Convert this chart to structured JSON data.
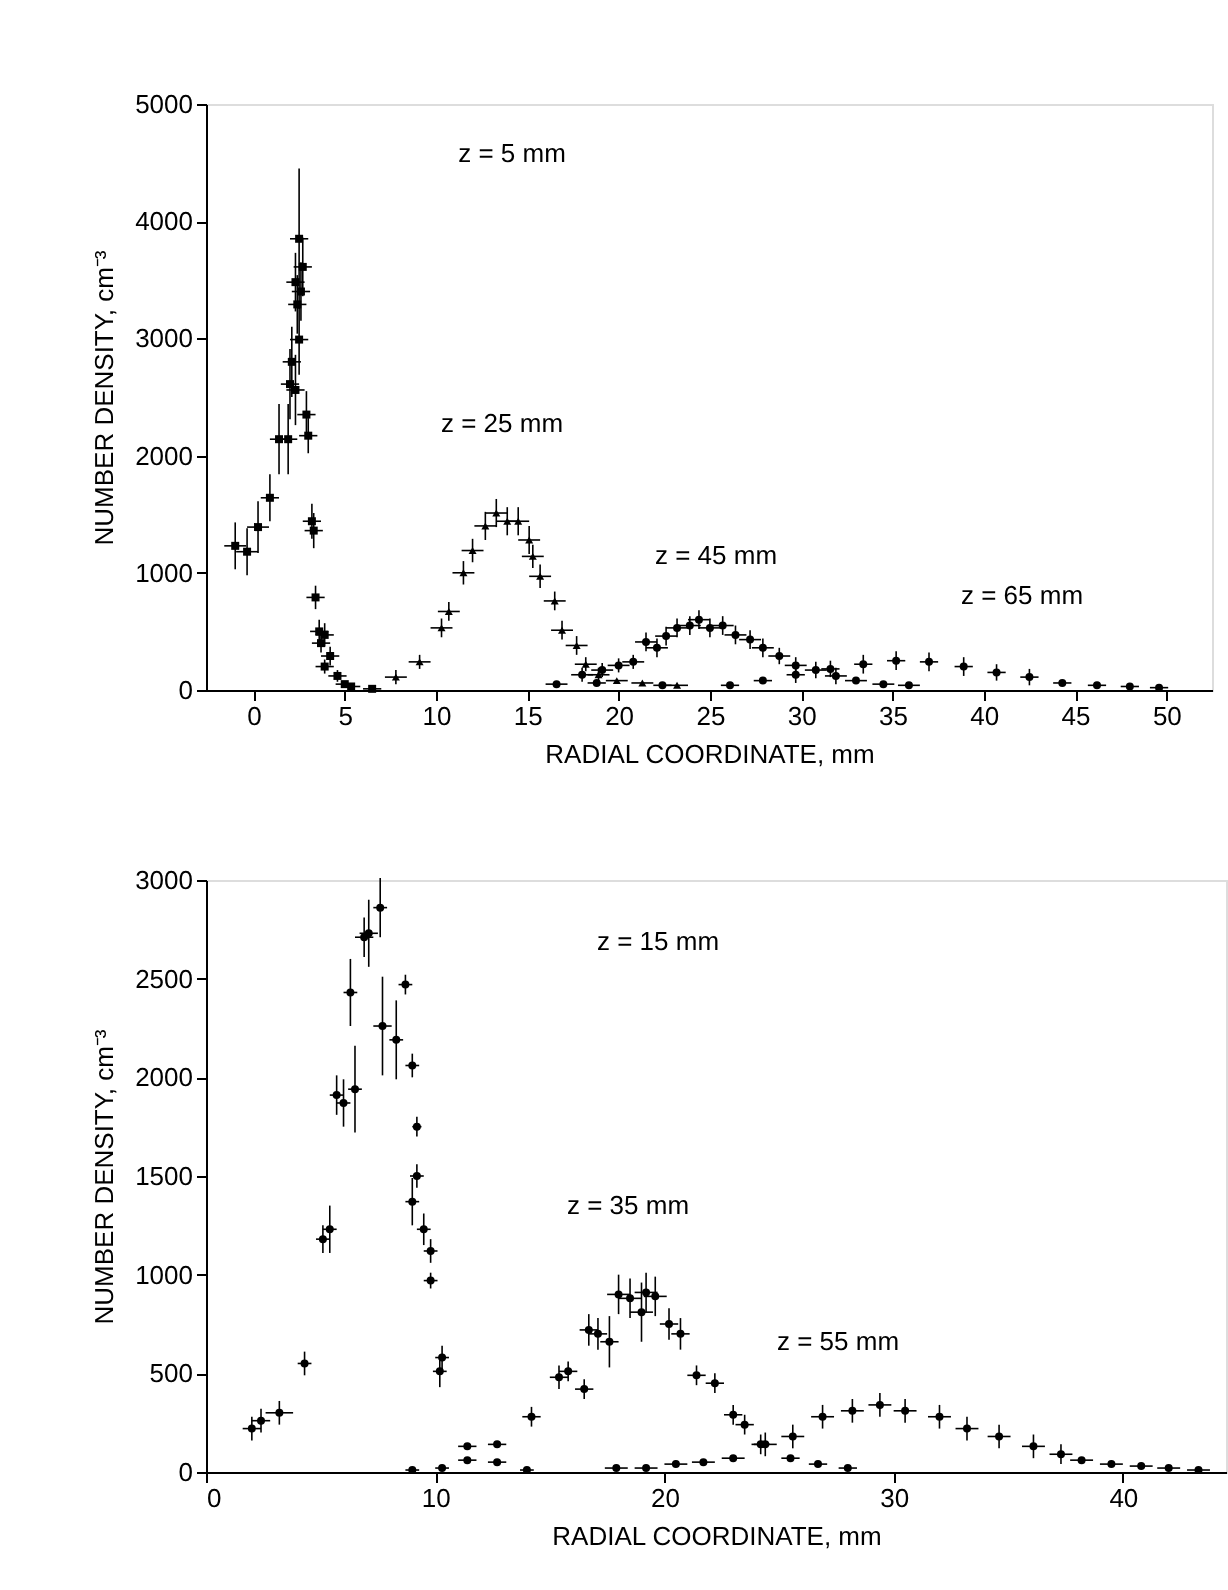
{
  "chart_data": [
    {
      "type": "scatter",
      "xlabel": "RADIAL COORDINATE, mm",
      "ylabel": "NUMBER DENSITY, cm⁻³",
      "xlim": [
        -2.6,
        52.5
      ],
      "ylim": [
        0,
        5000
      ],
      "xticks": [
        0,
        5,
        10,
        15,
        20,
        25,
        30,
        35,
        40,
        45,
        50
      ],
      "yticks": [
        0,
        1000,
        2000,
        3000,
        4000,
        5000
      ],
      "grid": false,
      "series": [
        {
          "color": "#000000",
          "marker": "square",
          "x": [
            -1.0,
            -0.35,
            0.25,
            0.9,
            1.4,
            1.9,
            2.0,
            2.1,
            2.3,
            2.5,
            2.4,
            2.6,
            2.3,
            2.7,
            2.5,
            2.9,
            3.0,
            3.2,
            3.3,
            3.4,
            3.6,
            3.9,
            3.7,
            4.2,
            3.9,
            4.6,
            5.0,
            5.35,
            6.5
          ],
          "values": [
            1230,
            1180,
            1390,
            1640,
            2140,
            2140,
            2610,
            2800,
            2560,
            2990,
            3290,
            3400,
            3480,
            3610,
            3850,
            2350,
            2170,
            1440,
            1360,
            790,
            500,
            470,
            400,
            290,
            200,
            120,
            50,
            30,
            10
          ],
          "errors": [
            200,
            200,
            220,
            200,
            300,
            300,
            300,
            300,
            300,
            300,
            250,
            250,
            250,
            250,
            600,
            200,
            150,
            150,
            150,
            100,
            100,
            100,
            80,
            80,
            60,
            50,
            null,
            null,
            null
          ],
          "xerrors": [
            0.6,
            0.6,
            0.6,
            0.5,
            0.5,
            0.5,
            0.5,
            0.5,
            0.5,
            0.5,
            0.5,
            0.5,
            0.5,
            0.5,
            0.5,
            0.5,
            0.5,
            0.5,
            0.5,
            0.5,
            0.5,
            0.5,
            0.5,
            0.5,
            0.5,
            0.5,
            0.5,
            0.5,
            0.5
          ]
        },
        {
          "color": "#000000",
          "marker": "triangle",
          "x": [
            7.8,
            9.1,
            10.3,
            10.7,
            11.5,
            12.0,
            12.7,
            13.3,
            13.9,
            14.5,
            15.1,
            15.3,
            15.7,
            16.5,
            16.9,
            17.7,
            18.2,
            18.9,
            19.9,
            21.3,
            23.2
          ],
          "values": [
            110,
            240,
            530,
            670,
            1000,
            1190,
            1400,
            1510,
            1440,
            1440,
            1280,
            1140,
            970,
            760,
            510,
            380,
            220,
            130,
            80,
            60,
            40
          ],
          "errors": [
            60,
            60,
            80,
            80,
            100,
            100,
            120,
            120,
            120,
            120,
            120,
            100,
            100,
            80,
            80,
            80,
            60,
            60,
            null,
            null,
            null
          ],
          "xerrors": [
            0.6,
            0.6,
            0.6,
            0.6,
            0.6,
            0.6,
            0.6,
            0.6,
            0.6,
            0.6,
            0.6,
            0.6,
            0.6,
            0.6,
            0.6,
            0.6,
            0.6,
            0.6,
            0.6,
            0.6,
            0.6
          ]
        },
        {
          "color": "#000000",
          "marker": "circle",
          "x": [
            16.6,
            18.0,
            19.1,
            20.0,
            20.8,
            21.5,
            22.1,
            22.6,
            23.2,
            23.9,
            24.4,
            25.0,
            25.7,
            26.4,
            27.2,
            27.9,
            28.8,
            29.7,
            30.8,
            31.9,
            33.0,
            34.5,
            35.9
          ],
          "values": [
            50,
            130,
            170,
            210,
            240,
            410,
            360,
            460,
            530,
            550,
            600,
            530,
            550,
            470,
            430,
            360,
            290,
            210,
            170,
            120,
            80,
            50,
            40
          ],
          "errors": [
            null,
            60,
            60,
            60,
            60,
            80,
            80,
            80,
            80,
            80,
            80,
            80,
            80,
            80,
            80,
            80,
            70,
            70,
            70,
            70,
            null,
            null,
            null
          ],
          "xerrors": [
            0.6,
            0.6,
            0.6,
            0.6,
            0.6,
            0.6,
            0.6,
            0.6,
            0.6,
            0.6,
            0.6,
            0.6,
            0.6,
            0.6,
            0.6,
            0.6,
            0.6,
            0.6,
            0.6,
            0.6,
            0.6,
            0.6,
            0.6
          ]
        },
        {
          "color": "#000000",
          "marker": "circle",
          "x": [
            18.8,
            22.4,
            26.1,
            27.9,
            29.7,
            31.6,
            33.4,
            35.2,
            37.0,
            38.9,
            40.7,
            42.5,
            44.3,
            46.2,
            48.0,
            49.6
          ],
          "values": [
            60,
            40,
            40,
            80,
            130,
            180,
            220,
            250,
            240,
            200,
            150,
            110,
            60,
            40,
            30,
            20
          ],
          "errors": [
            null,
            null,
            null,
            null,
            70,
            70,
            80,
            80,
            80,
            80,
            70,
            70,
            null,
            null,
            null,
            null
          ],
          "xerrors": [
            0.5,
            0.5,
            0.5,
            0.5,
            0.5,
            0.5,
            0.5,
            0.5,
            0.5,
            0.5,
            0.5,
            0.5,
            0.5,
            0.5,
            0.5,
            0.5
          ]
        }
      ],
      "annotations": [
        "z = 5 mm",
        "z = 25 mm",
        "z = 45 mm",
        "z = 65 mm"
      ]
    },
    {
      "type": "scatter",
      "xlabel": "RADIAL COORDINATE, mm",
      "ylabel": "NUMBER DENSITY, cm⁻³",
      "xlim": [
        0,
        44.5
      ],
      "ylim": [
        0,
        3000
      ],
      "xticks": [
        0,
        10,
        20,
        30,
        40
      ],
      "yticks": [
        0,
        500,
        1000,
        1500,
        2000,
        2500,
        3000
      ],
      "grid": false,
      "series": [
        {
          "color": "#000000",
          "marker": "circle",
          "x": [
            2.0,
            2.4,
            3.2,
            4.3,
            5.1,
            5.4,
            5.7,
            6.0,
            6.3,
            6.5,
            6.9,
            7.1,
            7.6,
            7.7,
            8.3,
            8.7,
            9.0,
            9.2,
            9.0,
            9.2,
            9.5,
            9.8,
            9.8,
            10.2,
            10.3
          ],
          "values": [
            220,
            260,
            300,
            550,
            1180,
            1230,
            1910,
            1870,
            2430,
            1940,
            2710,
            2730,
            2860,
            2260,
            2190,
            2470,
            2060,
            1750,
            1370,
            1500,
            1230,
            1120,
            970,
            510,
            580
          ],
          "errors": [
            60,
            60,
            60,
            60,
            70,
            120,
            100,
            120,
            170,
            220,
            100,
            170,
            150,
            250,
            200,
            50,
            60,
            50,
            120,
            60,
            80,
            60,
            40,
            80,
            60
          ],
          "xerrors": [
            0.4,
            0.4,
            0.6,
            0.3,
            0.3,
            0.3,
            0.3,
            0.3,
            0.3,
            0.3,
            0.4,
            0.4,
            0.3,
            0.4,
            0.3,
            0.3,
            0.3,
            0.2,
            0.3,
            0.3,
            0.3,
            0.3,
            0.3,
            0.3,
            0.3
          ]
        },
        {
          "color": "#000000",
          "marker": "circle",
          "x": [
            9.0,
            10.3,
            11.4,
            11.4,
            12.7,
            12.7,
            14.0,
            14.2,
            15.4,
            15.8,
            16.5,
            16.7,
            17.1,
            17.6,
            18.0,
            18.5,
            19.0,
            19.2,
            19.6,
            20.2,
            20.7,
            21.4,
            22.2,
            23.0,
            23.5,
            24.2,
            25.5,
            26.7,
            28.0
          ],
          "values": [
            10,
            20,
            130,
            60,
            140,
            50,
            10,
            280,
            480,
            510,
            420,
            720,
            700,
            660,
            900,
            880,
            810,
            910,
            890,
            750,
            700,
            490,
            450,
            290,
            240,
            140,
            70,
            40,
            20
          ],
          "errors": [
            null,
            null,
            null,
            null,
            null,
            null,
            null,
            50,
            60,
            50,
            50,
            80,
            80,
            130,
            100,
            100,
            150,
            100,
            100,
            80,
            80,
            50,
            50,
            50,
            50,
            50,
            null,
            null,
            null
          ],
          "xerrors": [
            0.3,
            0.3,
            0.4,
            0.4,
            0.4,
            0.4,
            0.3,
            0.4,
            0.4,
            0.4,
            0.4,
            0.4,
            0.4,
            0.4,
            0.5,
            0.5,
            0.5,
            0.5,
            0.5,
            0.4,
            0.4,
            0.4,
            0.4,
            0.4,
            0.4,
            0.4,
            0.4,
            0.4,
            0.4
          ]
        },
        {
          "color": "#000000",
          "marker": "circle",
          "x": [
            17.9,
            19.2,
            20.5,
            21.7,
            23.0,
            24.4,
            25.6,
            26.9,
            28.2,
            29.4,
            30.5,
            32.0,
            33.2,
            34.6,
            36.1,
            37.3,
            38.2,
            39.5,
            40.8,
            42.0,
            43.3
          ],
          "values": [
            20,
            20,
            40,
            50,
            70,
            140,
            180,
            280,
            310,
            340,
            310,
            280,
            220,
            180,
            130,
            90,
            60,
            40,
            30,
            20,
            10
          ],
          "errors": [
            null,
            null,
            null,
            null,
            null,
            60,
            60,
            60,
            60,
            60,
            60,
            60,
            60,
            60,
            60,
            50,
            null,
            null,
            null,
            null,
            null
          ],
          "xerrors": [
            0.5,
            0.5,
            0.5,
            0.5,
            0.5,
            0.5,
            0.5,
            0.5,
            0.5,
            0.5,
            0.5,
            0.5,
            0.5,
            0.5,
            0.5,
            0.5,
            0.5,
            0.5,
            0.5,
            0.5,
            0.5
          ]
        }
      ],
      "annotations": [
        "z = 15 mm",
        "z = 35 mm",
        "z = 55 mm"
      ]
    }
  ]
}
